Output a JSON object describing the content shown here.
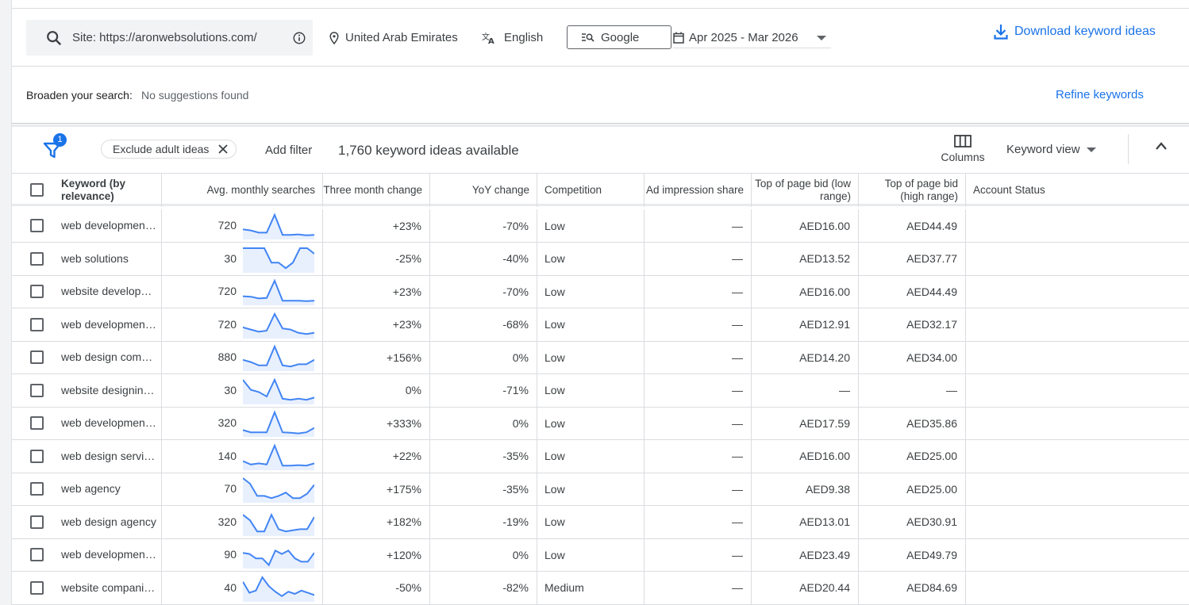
{
  "search": {
    "query": "Site: https://aronwebsolutions.com/",
    "location": "United Arab Emirates",
    "language": "English",
    "network": "Google",
    "date_range": "Apr 2025 - Mar 2026",
    "download_label": "Download keyword ideas"
  },
  "broaden": {
    "label": "Broaden your search:",
    "value": "No suggestions found",
    "refine_label": "Refine keywords"
  },
  "toolbar": {
    "filter_count": "1",
    "exclude_chip": "Exclude adult ideas",
    "add_filter": "Add filter",
    "ideas_count": "1,760 keyword ideas available",
    "columns_label": "Columns",
    "view_label": "Keyword view"
  },
  "columns": {
    "keyword": "Keyword (by relevance)",
    "searches": "Avg. monthly searches",
    "three_month": "Three month change",
    "yoy": "YoY change",
    "competition": "Competition",
    "impression": "Ad impression share",
    "bid_low": "Top of page bid (low range)",
    "bid_high": "Top of page bid (high range)",
    "status": "Account Status"
  },
  "rows": [
    {
      "keyword": "web development…",
      "searches": "720",
      "three_month": "+23%",
      "yoy": "-70%",
      "competition": "Low",
      "impression": "—",
      "bid_low": "AED16.00",
      "bid_high": "AED44.49",
      "trend": [
        0.35,
        0.3,
        0.2,
        0.2,
        1.0,
        0.1,
        0.1,
        0.12,
        0.08,
        0.1
      ]
    },
    {
      "keyword": "web solutions",
      "searches": "30",
      "three_month": "-25%",
      "yoy": "-40%",
      "competition": "Low",
      "impression": "—",
      "bid_low": "AED13.52",
      "bid_high": "AED37.77",
      "trend": [
        1.0,
        1.0,
        1.0,
        1.0,
        0.35,
        0.35,
        0.1,
        0.35,
        1.0,
        1.0,
        0.75
      ]
    },
    {
      "keyword": "website develop…",
      "searches": "720",
      "three_month": "+23%",
      "yoy": "-70%",
      "competition": "Low",
      "impression": "—",
      "bid_low": "AED16.00",
      "bid_high": "AED44.49",
      "trend": [
        0.3,
        0.28,
        0.2,
        0.22,
        1.0,
        0.1,
        0.1,
        0.1,
        0.08,
        0.1
      ]
    },
    {
      "keyword": "web development…",
      "searches": "720",
      "three_month": "+23%",
      "yoy": "-68%",
      "competition": "Low",
      "impression": "—",
      "bid_low": "AED12.91",
      "bid_high": "AED32.17",
      "trend": [
        0.4,
        0.3,
        0.2,
        0.25,
        1.0,
        0.35,
        0.3,
        0.15,
        0.1,
        0.15
      ]
    },
    {
      "keyword": "web design comp…",
      "searches": "880",
      "three_month": "+156%",
      "yoy": "0%",
      "competition": "Low",
      "impression": "—",
      "bid_low": "AED14.20",
      "bid_high": "AED34.00",
      "trend": [
        0.4,
        0.3,
        0.15,
        0.15,
        1.0,
        0.15,
        0.1,
        0.2,
        0.2,
        0.4
      ]
    },
    {
      "keyword": "website designin…",
      "searches": "30",
      "three_month": "0%",
      "yoy": "-71%",
      "competition": "Low",
      "impression": "—",
      "bid_low": "—",
      "bid_high": "—",
      "trend": [
        1.0,
        0.55,
        0.45,
        0.25,
        1.0,
        0.15,
        0.1,
        0.15,
        0.1,
        0.2
      ]
    },
    {
      "keyword": "web development…",
      "searches": "320",
      "three_month": "+333%",
      "yoy": "0%",
      "competition": "Low",
      "impression": "—",
      "bid_low": "AED17.59",
      "bid_high": "AED35.86",
      "trend": [
        0.2,
        0.1,
        0.1,
        0.1,
        1.0,
        0.1,
        0.08,
        0.05,
        0.1,
        0.3
      ]
    },
    {
      "keyword": "web design servi…",
      "searches": "140",
      "three_month": "+22%",
      "yoy": "-35%",
      "competition": "Low",
      "impression": "—",
      "bid_low": "AED16.00",
      "bid_high": "AED25.00",
      "trend": [
        0.3,
        0.15,
        0.2,
        0.15,
        1.0,
        0.1,
        0.1,
        0.12,
        0.1,
        0.2
      ]
    },
    {
      "keyword": "web agency",
      "searches": "70",
      "three_month": "+175%",
      "yoy": "-35%",
      "competition": "Low",
      "impression": "—",
      "bid_low": "AED9.38",
      "bid_high": "AED25.00",
      "trend": [
        1.0,
        0.75,
        0.2,
        0.2,
        0.1,
        0.2,
        0.35,
        0.1,
        0.1,
        0.3,
        0.7
      ]
    },
    {
      "keyword": "web design agency",
      "searches": "320",
      "three_month": "+182%",
      "yoy": "-19%",
      "competition": "Low",
      "impression": "—",
      "bid_low": "AED13.01",
      "bid_high": "AED30.91",
      "trend": [
        0.85,
        0.6,
        0.1,
        0.1,
        0.85,
        0.2,
        0.1,
        0.15,
        0.2,
        0.2,
        0.75
      ]
    },
    {
      "keyword": "web development…",
      "searches": "90",
      "three_month": "+120%",
      "yoy": "0%",
      "competition": "Low",
      "impression": "—",
      "bid_low": "AED23.49",
      "bid_high": "AED49.79",
      "trend": [
        0.6,
        0.55,
        0.35,
        0.35,
        0.05,
        0.7,
        0.55,
        0.7,
        0.35,
        0.2,
        0.2,
        0.6
      ]
    },
    {
      "keyword": "website compani…",
      "searches": "40",
      "three_month": "-50%",
      "yoy": "-82%",
      "competition": "Medium",
      "impression": "—",
      "bid_low": "AED20.44",
      "bid_high": "AED84.69",
      "trend": [
        0.8,
        0.3,
        0.4,
        1.0,
        0.6,
        0.35,
        0.15,
        0.35,
        0.25,
        0.4,
        0.3,
        0.2
      ]
    }
  ],
  "colors": {
    "accent": "#1a73e8",
    "spark_line": "#4285f4",
    "spark_fill": "#e8f0fe"
  }
}
